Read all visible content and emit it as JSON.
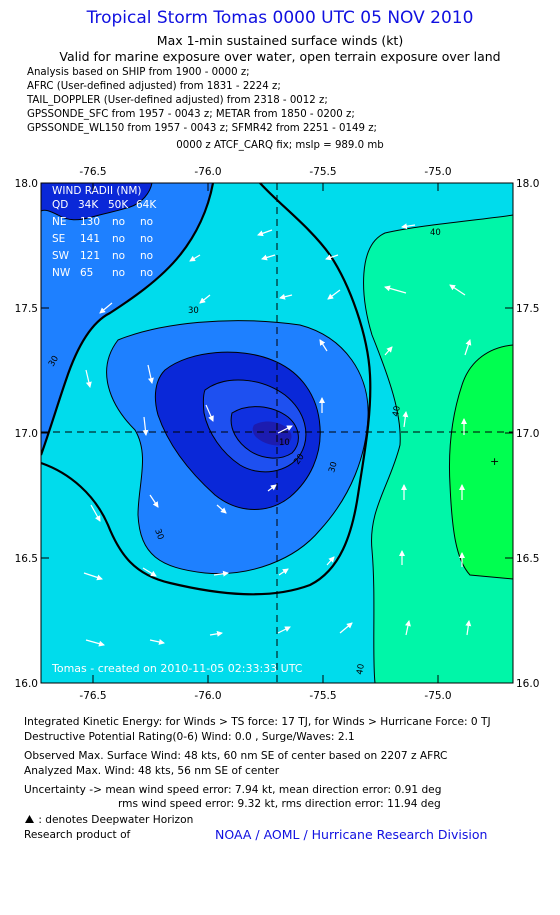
{
  "header": {
    "title": "Tropical Storm Tomas 0000 UTC 05 NOV 2010",
    "subtitle1": "Max 1-min sustained surface winds (kt)",
    "subtitle2": "Valid for marine exposure over water, open terrain exposure over land"
  },
  "analysis": {
    "line1": "Analysis based on SHIP from 1900 - 0000 z;",
    "line2": "AFRC (User-defined adjusted) from 1831 - 2224 z;",
    "line3": "TAIL_DOPPLER (User-defined adjusted) from 2318 - 0012 z;",
    "line4": "GPSSONDE_SFC from 1957 - 0043 z; METAR from 1850 - 0200 z;",
    "line5": "GPSSONDE_WL150 from 1957 - 0043 z; SFMR42 from 2251 - 0149 z;",
    "line6": "0000 z ATCF_CARQ fix; mslp = 989.0 mb"
  },
  "map": {
    "lon_ticks": [
      "-76.5",
      "-76.0",
      "-75.5",
      "-75.0"
    ],
    "lat_ticks": [
      "18.0",
      "17.5",
      "17.0",
      "16.5",
      "16.0"
    ],
    "contour_labels": [
      "10",
      "20",
      "30",
      "30",
      "30",
      "30",
      "40",
      "40",
      "40"
    ],
    "credit": "Tomas - created on 2010-11-05 02:33:33 UTC",
    "center_mark": "+",
    "colors": {
      "level_lt20": "#0a28d8",
      "level_20_30": "#1e80ff",
      "level_30_40": "#00dcec",
      "level_40_50": "#00f6a8",
      "level_50_60": "#00ff50",
      "eye_core": "#1c1cb0",
      "land": "#0a28d8"
    }
  },
  "wind_radii": {
    "title": "WIND RADII (NM)",
    "header": [
      "QD",
      "34K",
      "50K",
      "64K"
    ],
    "rows": [
      [
        "NE",
        "130",
        "no",
        "no"
      ],
      [
        "SE",
        "141",
        "no",
        "no"
      ],
      [
        "SW",
        "121",
        "no",
        "no"
      ],
      [
        "NW",
        "65",
        "no",
        "no"
      ]
    ]
  },
  "footer": {
    "ike": "Integrated Kinetic Energy:  for Winds > TS force: 17 TJ,  for Winds > Hurricane Force: 0 TJ",
    "dpr": "Destructive Potential Rating(0-6)   Wind: 0.0 , Surge/Waves: 2.1",
    "observed": "Observed Max. Surface Wind: 48 kts, 60 nm SE of center based on 2207 z AFRC",
    "analyzed": "Analyzed Max. Wind: 48 kts, 56 nm SE of center",
    "uncertainty1": "Uncertainty -> mean wind speed error: 7.94 kt,   mean direction error: 0.91 deg",
    "uncertainty2": "rms wind speed error: 9.32 kt,   rms direction error: 11.94 deg",
    "deepwater": ": denotes Deepwater Horizon",
    "research": "Research product of",
    "noaa": "NOAA / AOML / Hurricane Research Division"
  }
}
